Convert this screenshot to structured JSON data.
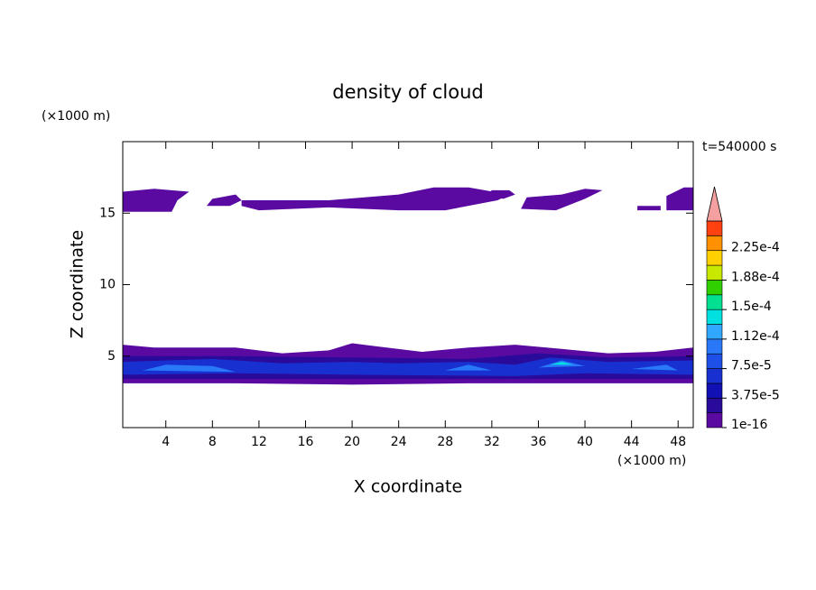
{
  "chart_data": {
    "type": "contour",
    "title": "density of cloud",
    "xlabel": "X coordinate",
    "ylabel": "Z coordinate",
    "xunit": "(×1000 m)",
    "yunit": "(×1000 m)",
    "time_label": "t=540000 s",
    "xlim": [
      0.3,
      49.3
    ],
    "ylim": [
      0,
      20
    ],
    "xticks": [
      4,
      8,
      12,
      16,
      20,
      24,
      28,
      32,
      36,
      40,
      44,
      48
    ],
    "yticks": [
      5,
      10,
      15
    ],
    "levels": [
      {
        "value": 1e-16,
        "label": "1e-16"
      },
      1.875e-05,
      {
        "value": 3.75e-05,
        "label": "3.75e-5"
      },
      5.625e-05,
      {
        "value": 7.5e-05,
        "label": "7.5e-5"
      },
      9.375e-05,
      {
        "value": 0.0001125,
        "label": "1.12e-4"
      },
      0.00013125,
      {
        "value": 0.00015,
        "label": "1.5e-4"
      },
      0.00016875,
      {
        "value": 0.0001875,
        "label": "1.88e-4"
      },
      0.00020625,
      {
        "value": 0.000225,
        "label": "2.25e-4"
      },
      0.00024375
    ],
    "colors": [
      "#5a0aa0",
      "#2a0a9a",
      "#1010b4",
      "#1830d0",
      "#1e50e8",
      "#2878f8",
      "#30a8ff",
      "#00e0e0",
      "#00e090",
      "#30d000",
      "#c8e800",
      "#ffd000",
      "#ff9000",
      "#ff4010"
    ],
    "overflow_color": "#f4a0a0",
    "regions": [
      {
        "level": 1e-16,
        "x": [
          0.3,
          0.3,
          3,
          6,
          5,
          4.5
        ],
        "z": [
          15.1,
          16.5,
          16.7,
          16.5,
          15.9,
          15.1
        ]
      },
      {
        "level": 1e-16,
        "x": [
          7.5,
          8,
          10,
          10.5,
          9.5
        ],
        "z": [
          15.5,
          16,
          16.3,
          15.9,
          15.5
        ]
      },
      {
        "level": 1e-16,
        "x": [
          10.5,
          12,
          18,
          24,
          27,
          30,
          33.5,
          32.5,
          28,
          24,
          18,
          12,
          10.5
        ],
        "z": [
          15.9,
          15.9,
          15.9,
          16.3,
          16.8,
          16.8,
          16.3,
          15.9,
          15.2,
          15.2,
          15.4,
          15.2,
          15.5
        ]
      },
      {
        "level": 1e-16,
        "x": [
          31.5,
          32,
          33.5,
          34,
          33
        ],
        "z": [
          16.2,
          16.6,
          16.6,
          16.3,
          16
        ]
      },
      {
        "level": 1e-16,
        "x": [
          34.5,
          35,
          38,
          40,
          41.5,
          40,
          37.5
        ],
        "z": [
          15.3,
          16.1,
          16.3,
          16.7,
          16.6,
          16,
          15.2
        ]
      },
      {
        "level": 1e-16,
        "x": [
          44.5,
          44.5,
          46.5,
          46.5
        ],
        "z": [
          15.2,
          15.5,
          15.5,
          15.2
        ]
      },
      {
        "level": 1e-16,
        "x": [
          47,
          47,
          48.5,
          49.3,
          49.3
        ],
        "z": [
          15.2,
          16.2,
          16.8,
          16.8,
          15.2
        ]
      },
      {
        "level": 1e-16,
        "x": [
          0.3,
          0.3,
          3,
          10,
          14,
          18,
          20,
          22,
          26,
          30,
          34,
          38,
          42,
          46,
          49.3,
          49.3,
          35,
          30,
          20,
          10
        ],
        "z": [
          3.1,
          5.8,
          5.6,
          5.6,
          5.2,
          5.4,
          5.9,
          5.7,
          5.3,
          5.6,
          5.8,
          5.5,
          5.2,
          5.3,
          5.6,
          3.1,
          3.1,
          3.1,
          3,
          3.1
        ]
      },
      {
        "level": 1.875e-05,
        "x": [
          0.3,
          0.3,
          10,
          20,
          30,
          36,
          42,
          49.3,
          49.3
        ],
        "z": [
          3.4,
          5,
          5,
          4.9,
          4.8,
          5.2,
          4.9,
          5,
          3.4
        ]
      },
      {
        "level": 5.625e-05,
        "x": [
          0.3,
          0.3,
          8,
          14,
          20,
          24,
          30,
          34,
          37,
          42,
          49.3,
          49.3,
          40,
          34,
          20,
          10
        ],
        "z": [
          3.7,
          4.6,
          4.8,
          4.5,
          4.6,
          4.5,
          4.6,
          4.4,
          4.9,
          4.6,
          4.7,
          3.7,
          3.8,
          3.6,
          3.7,
          3.8
        ]
      },
      {
        "level": 9.375e-05,
        "x": [
          2,
          4,
          8,
          10
        ],
        "z": [
          4,
          4.4,
          4.3,
          3.9
        ]
      },
      {
        "level": 9.375e-05,
        "x": [
          28,
          30,
          32
        ],
        "z": [
          4,
          4.4,
          4
        ]
      },
      {
        "level": 9.375e-05,
        "x": [
          36,
          38,
          40
        ],
        "z": [
          4.2,
          4.7,
          4.3
        ]
      },
      {
        "level": 9.375e-05,
        "x": [
          44,
          47,
          48
        ],
        "z": [
          4.1,
          4.4,
          4
        ]
      },
      {
        "level": 0.00013125,
        "x": [
          37,
          38,
          39
        ],
        "z": [
          4.4,
          4.6,
          4.4
        ]
      }
    ]
  }
}
